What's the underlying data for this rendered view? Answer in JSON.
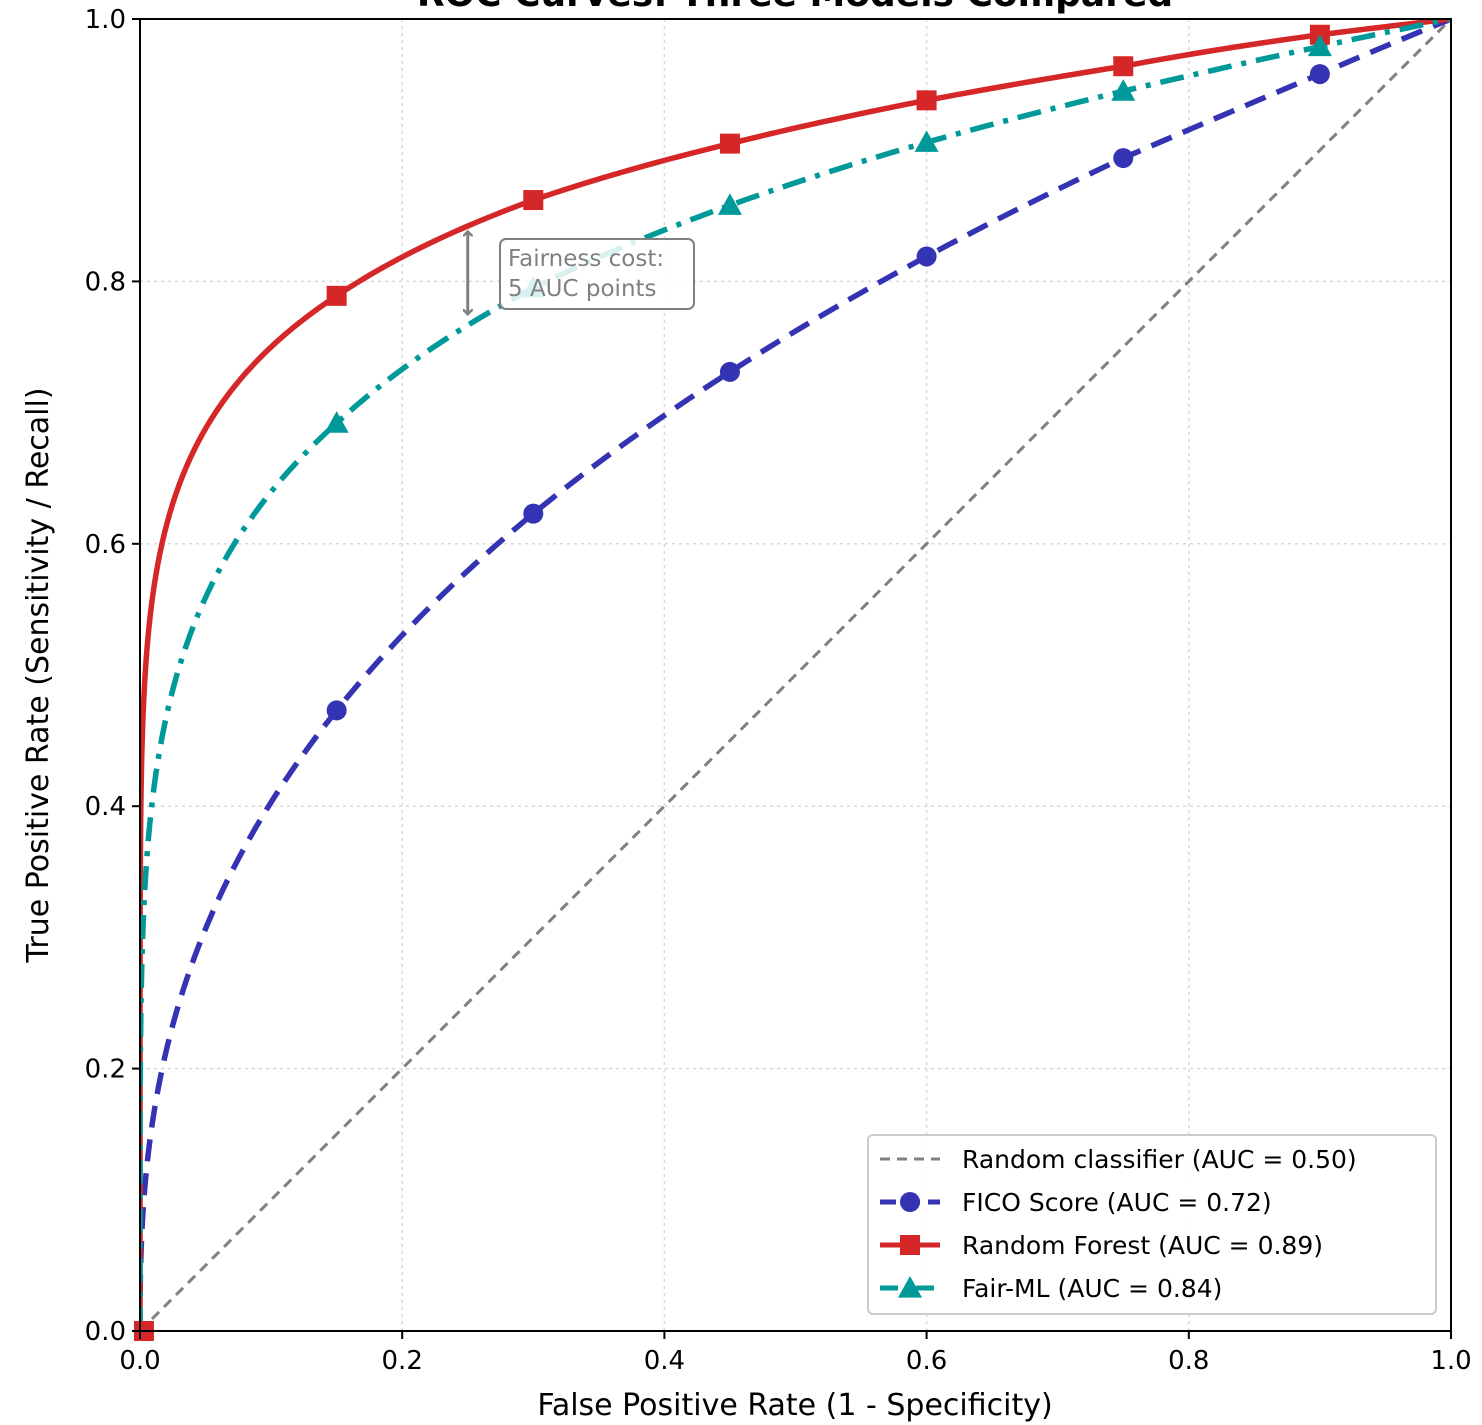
{
  "chart_data": {
    "type": "line",
    "title": "ROC Curves: Three Models Compared",
    "xlabel": "False Positive Rate  (1 - Specificity)",
    "ylabel": "True Positive Rate  (Sensitivity / Recall)",
    "xlim": [
      0,
      1
    ],
    "ylim": [
      0,
      1
    ],
    "xticks": [
      "0.0",
      "0.2",
      "0.4",
      "0.6",
      "0.8",
      "1.0"
    ],
    "yticks": [
      "0.0",
      "0.2",
      "0.4",
      "0.6",
      "0.8",
      "1.0"
    ],
    "grid": true,
    "legend_position": "lower-right",
    "series": [
      {
        "name": "Random classifier (AUC = 0.50)",
        "color": "#808080",
        "style": "dashed",
        "marker": "none",
        "x": [
          0,
          1
        ],
        "y": [
          0,
          1
        ]
      },
      {
        "name": "FICO Score  (AUC = 0.72)",
        "color": "#3333b3",
        "style": "dashed",
        "marker": "circle",
        "auc": 0.72,
        "marker_x": [
          0.15,
          0.3,
          0.45,
          0.6,
          0.75,
          0.9
        ],
        "marker_y": [
          0.473,
          0.623,
          0.731,
          0.819,
          0.894,
          0.958
        ]
      },
      {
        "name": "Random Forest  (AUC = 0.89)",
        "color": "#d62728",
        "style": "solid",
        "marker": "square",
        "auc": 0.89,
        "marker_x": [
          0.003,
          0.15,
          0.3,
          0.45,
          0.6,
          0.75,
          0.9
        ],
        "marker_y": [
          0.0,
          0.789,
          0.862,
          0.905,
          0.938,
          0.964,
          0.988
        ]
      },
      {
        "name": "Fair-ML  (AUC = 0.84)",
        "color": "#009999",
        "style": "dashdot",
        "marker": "triangle",
        "auc": 0.84,
        "marker_x": [
          0.15,
          0.3,
          0.45,
          0.6,
          0.75,
          0.9
        ],
        "marker_y": [
          0.692,
          0.795,
          0.858,
          0.906,
          0.945,
          0.979
        ]
      }
    ],
    "annotation": {
      "text_lines": [
        "Fairness cost:",
        "5 AUC points"
      ],
      "arrow_x": 0.25,
      "arrow_y_top": 0.838,
      "arrow_y_bottom": 0.775,
      "color": "#808080"
    }
  }
}
